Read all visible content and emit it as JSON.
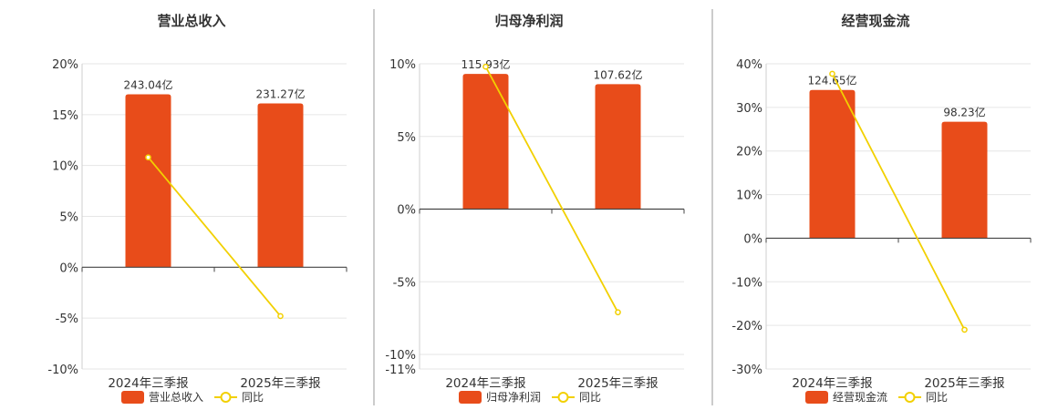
{
  "chart_data": [
    {
      "type": "bar",
      "title": "营业总收入",
      "categories": [
        "2024年三季报",
        "2025年三季报"
      ],
      "bar_series": {
        "name": "营业总收入",
        "values": [
          17.0,
          16.1
        ],
        "labels": [
          "243.04亿",
          "231.27亿"
        ],
        "color": "#e84c1a"
      },
      "line_series": {
        "name": "同比",
        "values": [
          10.8,
          -4.8
        ],
        "color": "#f2d000"
      },
      "ylim": [
        -10,
        20
      ],
      "yticks": [
        20,
        15,
        10,
        5,
        0,
        -5,
        -10
      ],
      "ytick_labels": [
        "20%",
        "15%",
        "10%",
        "5%",
        "0%",
        "-5%",
        "-10%"
      ],
      "grid": true,
      "legend": "bottom"
    },
    {
      "type": "bar",
      "title": "归母净利润",
      "categories": [
        "2024年三季报",
        "2025年三季报"
      ],
      "bar_series": {
        "name": "归母净利润",
        "values": [
          9.3,
          8.6
        ],
        "labels": [
          "115.93亿",
          "107.62亿"
        ],
        "color": "#e84c1a"
      },
      "line_series": {
        "name": "同比",
        "values": [
          9.8,
          -7.1
        ],
        "color": "#f2d000"
      },
      "ylim": [
        -11,
        10
      ],
      "yticks": [
        10,
        5,
        0,
        -5,
        -10,
        -11
      ],
      "ytick_labels": [
        "10%",
        "5%",
        "0%",
        "-5%",
        "-10%",
        "-11%"
      ],
      "grid": true,
      "legend": "bottom"
    },
    {
      "type": "bar",
      "title": "经营现金流",
      "categories": [
        "2024年三季报",
        "2025年三季报"
      ],
      "bar_series": {
        "name": "经营现金流",
        "values": [
          34.0,
          26.7
        ],
        "labels": [
          "124.65亿",
          "98.23亿"
        ],
        "color": "#e84c1a"
      },
      "line_series": {
        "name": "同比",
        "values": [
          37.7,
          -21.0
        ],
        "color": "#f2d000"
      },
      "ylim": [
        -30,
        40
      ],
      "yticks": [
        40,
        30,
        20,
        10,
        0,
        -10,
        -20,
        -30
      ],
      "ytick_labels": [
        "40%",
        "30%",
        "20%",
        "10%",
        "0%",
        "-10%",
        "-20%",
        "-30%"
      ],
      "grid": true,
      "legend": "bottom"
    }
  ]
}
